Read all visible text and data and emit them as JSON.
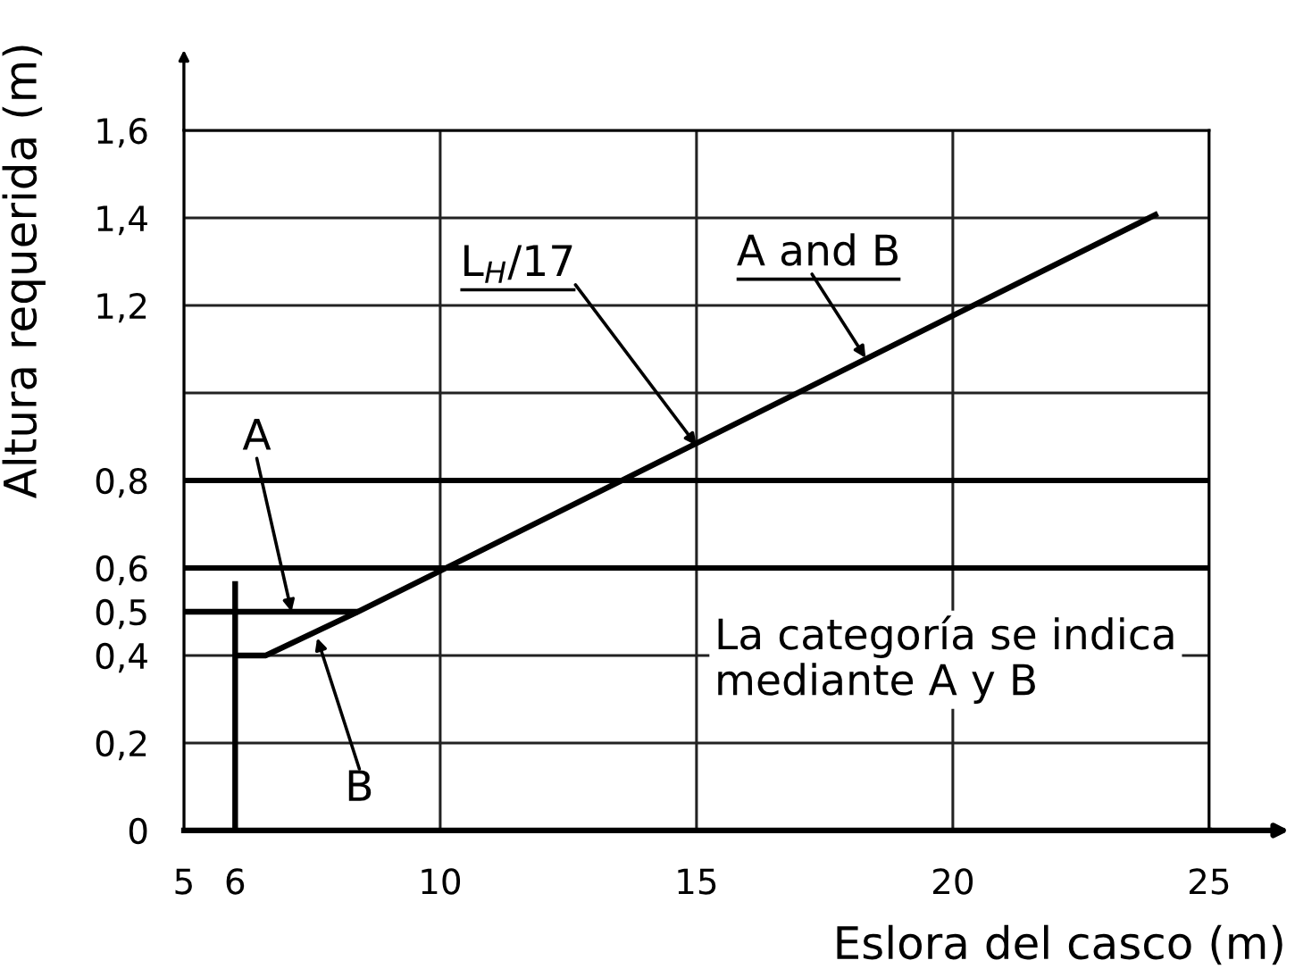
{
  "chart_data": {
    "type": "line",
    "xlabel": "Eslora del casco (m)",
    "ylabel": "Altura requerida (m)",
    "xlim": [
      5,
      25
    ],
    "ylim": [
      0,
      1.6
    ],
    "xticks": [
      5,
      6,
      10,
      15,
      20,
      25
    ],
    "yticks": [
      0,
      {
        "value": 0.2,
        "label": "0,2"
      },
      {
        "value": 0.4,
        "label": "0,4"
      },
      {
        "value": 0.5,
        "label": "0,5"
      },
      {
        "value": 0.6,
        "label": "0,6"
      },
      {
        "value": 0.8,
        "label": "0,8"
      },
      {
        "value": 1.0,
        "label": null
      },
      {
        "value": 1.2,
        "label": "1,2"
      },
      {
        "value": 1.4,
        "label": "1,4"
      },
      {
        "value": 1.6,
        "label": "1,6"
      }
    ],
    "grid": true,
    "series": [
      {
        "color": "#000000",
        "x": [
          6,
          6.6,
          8.4,
          24
        ],
        "values": [
          0.4,
          0.4,
          0.5,
          1.41
        ]
      },
      {
        "color": "#000000",
        "x": [
          5,
          8.4
        ],
        "values": [
          0.5,
          0.5
        ]
      },
      {
        "color": "#000000",
        "x": [
          6,
          6
        ],
        "values": [
          0,
          0.57
        ]
      }
    ],
    "ref_lines": [
      {
        "axis": "y",
        "value": 0.6,
        "color": "#000000"
      },
      {
        "axis": "y",
        "value": 0.8,
        "color": "#000000"
      }
    ],
    "annotations": [
      {
        "text": "L$_{H}$/17",
        "x": 15,
        "y": 0.88
      },
      {
        "text": "A and B",
        "x": 18.3,
        "y": 1.08
      },
      {
        "text": "A",
        "x": 7.1,
        "y": 0.5
      },
      {
        "text": "B",
        "x": 7.6,
        "y": 0.44
      },
      "La categoría se indica\nmediante A y B"
    ]
  }
}
